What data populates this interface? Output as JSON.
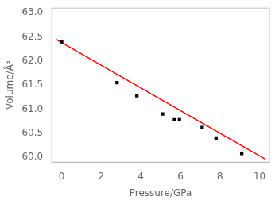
{
  "chart_data": {
    "type": "scatter",
    "xlabel": "Pressure/GPa",
    "ylabel": "Volume/Å³",
    "series": [
      {
        "type": "line",
        "color": "#ff0000",
        "line_style": "solid",
        "x": [
          -0.3,
          10.3
        ],
        "values": [
          62.455,
          59.96
        ]
      },
      {
        "type": "scatter",
        "color": "#000000",
        "marker": "square",
        "x": [
          0.0,
          2.8,
          3.8,
          5.1,
          5.7,
          5.95,
          7.1,
          7.8,
          9.1
        ],
        "values": [
          62.4,
          61.55,
          61.28,
          60.9,
          60.78,
          60.78,
          60.62,
          60.4,
          60.08
        ]
      }
    ],
    "xlim": [
      -0.5,
      10.5
    ],
    "ylim": [
      59.9,
      63.1
    ],
    "xticks": [
      0,
      2,
      4,
      6,
      8,
      10
    ],
    "yticks": [
      {
        "value": 60.0,
        "label": "60.0"
      },
      60.5,
      {
        "value": 61.0,
        "label": "61.0"
      },
      61.5,
      {
        "value": 62.0,
        "label": "62.0"
      },
      62.5,
      {
        "value": 63.0,
        "label": "63.0"
      }
    ],
    "grid": false
  }
}
